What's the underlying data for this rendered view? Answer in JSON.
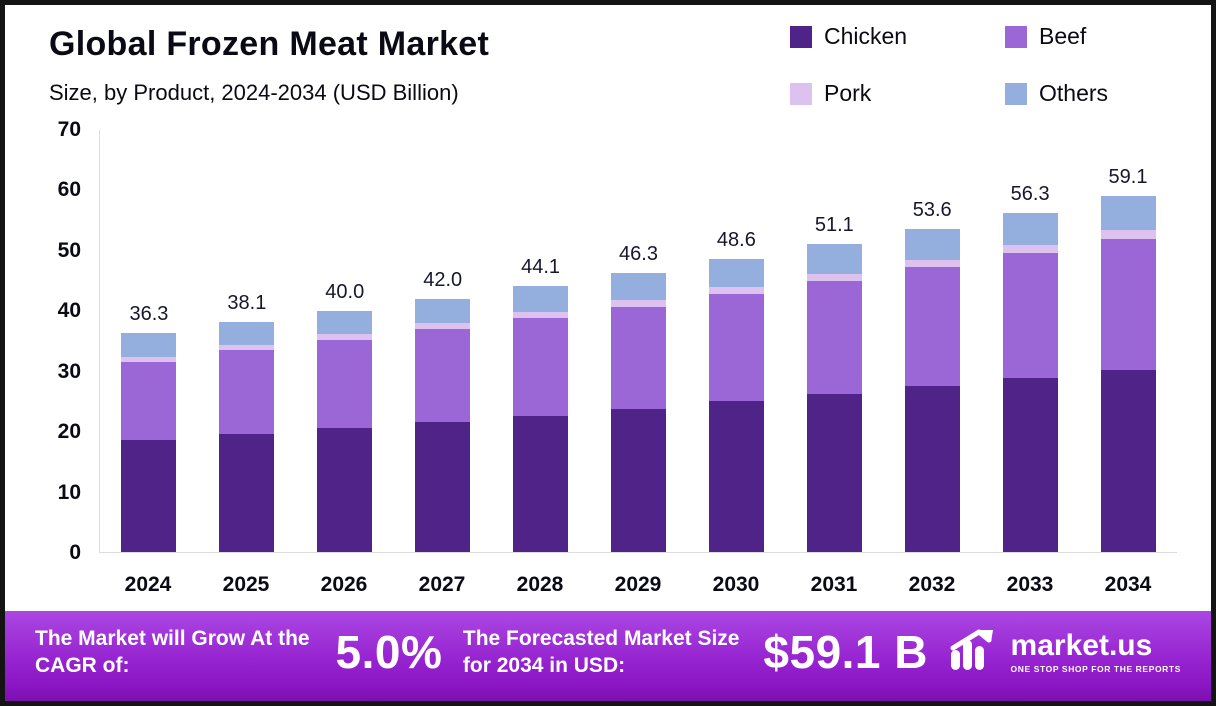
{
  "title": "Global Frozen Meat Market",
  "subtitle": "Size, by Product, 2024-2034 (USD Billion)",
  "legend": [
    {
      "label": "Chicken",
      "color": "#4f2387"
    },
    {
      "label": "Beef",
      "color": "#9b66d6"
    },
    {
      "label": "Pork",
      "color": "#ddc2f0"
    },
    {
      "label": "Others",
      "color": "#94aede"
    }
  ],
  "chart_data": {
    "type": "bar",
    "stacked": true,
    "title": "Global Frozen Meat Market Size, by Product, 2024-2034 (USD Billion)",
    "categories": [
      "2024",
      "2025",
      "2026",
      "2027",
      "2028",
      "2029",
      "2030",
      "2031",
      "2032",
      "2033",
      "2034"
    ],
    "series": [
      {
        "name": "Chicken",
        "color": "#4f2387",
        "values": [
          18.5,
          19.5,
          20.5,
          21.5,
          22.5,
          23.7,
          25.0,
          26.2,
          27.5,
          28.9,
          30.2
        ]
      },
      {
        "name": "Beef",
        "color": "#9b66d6",
        "values": [
          13.0,
          14.0,
          14.7,
          15.5,
          16.3,
          17.0,
          17.8,
          18.8,
          19.7,
          20.7,
          21.8
        ]
      },
      {
        "name": "Pork",
        "color": "#ddc2f0",
        "values": [
          0.9,
          0.9,
          1.0,
          1.0,
          1.0,
          1.1,
          1.1,
          1.2,
          1.2,
          1.3,
          1.4
        ]
      },
      {
        "name": "Others",
        "color": "#94aede",
        "values": [
          3.9,
          3.7,
          3.8,
          4.0,
          4.3,
          4.5,
          4.7,
          4.9,
          5.2,
          5.4,
          5.7
        ]
      }
    ],
    "totals": [
      36.3,
      38.1,
      40.0,
      42.0,
      44.1,
      46.3,
      48.6,
      51.1,
      53.6,
      56.3,
      59.1
    ],
    "xlabel": "",
    "ylabel": "",
    "ylim": [
      0,
      70
    ],
    "yticks": [
      0,
      10,
      20,
      30,
      40,
      50,
      60,
      70
    ],
    "grid": false,
    "legend_position": "top-right"
  },
  "banner": {
    "cagr_label": "The Market will Grow At the CAGR of:",
    "cagr_value": "5.0%",
    "forecast_label": "The Forecasted Market Size for 2034 in USD:",
    "forecast_value": "$59.1 B",
    "brand": "market.us",
    "brand_tagline": "ONE STOP SHOP FOR THE REPORTS"
  }
}
